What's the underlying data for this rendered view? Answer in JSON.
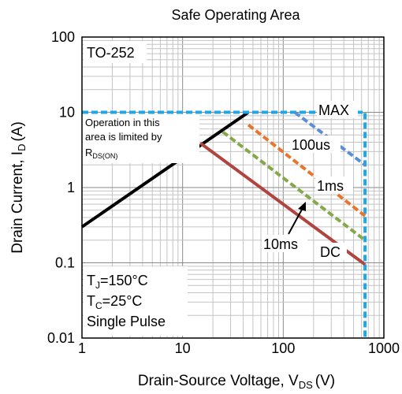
{
  "chart_data": {
    "type": "line",
    "title": "Safe Operating Area",
    "xlabel": {
      "main": "Drain-Source Voltage, V",
      "sub": "DS",
      "unit": "(V)"
    },
    "ylabel": {
      "main": "Drain Current, I",
      "sub": "D",
      "unit": "(A)"
    },
    "x_scale": "log",
    "y_scale": "log",
    "xlim": [
      1,
      1000
    ],
    "ylim": [
      0.01,
      100
    ],
    "grid": true,
    "x_ticks": [
      {
        "value": 1,
        "label": "1"
      },
      {
        "value": 10,
        "label": "10"
      },
      {
        "value": 100,
        "label": "100"
      },
      {
        "value": 1000,
        "label": "1000"
      }
    ],
    "y_ticks": [
      {
        "value": 0.01,
        "label": "0.01"
      },
      {
        "value": 0.1,
        "label": "0.1"
      },
      {
        "value": 1,
        "label": "1"
      },
      {
        "value": 10,
        "label": "10"
      },
      {
        "value": 100,
        "label": "100"
      }
    ],
    "series": [
      {
        "key": "rds",
        "color": "#000000",
        "dashed": false,
        "x": [
          1,
          45
        ],
        "y": [
          0.3,
          10
        ]
      },
      {
        "key": "max",
        "name": "MAX",
        "color": "#1ea7e8",
        "dashed": true,
        "x": [
          1,
          650,
          650
        ],
        "y": [
          10,
          10,
          0.01
        ]
      },
      {
        "key": "100us",
        "name": "100us",
        "color": "#5b8ed6",
        "dashed": true,
        "x": [
          130,
          650
        ],
        "y": [
          10,
          2
        ]
      },
      {
        "key": "1ms",
        "name": "1ms",
        "color": "#e7762c",
        "dashed": true,
        "x": [
          45,
          650
        ],
        "y": [
          6.8,
          0.42
        ]
      },
      {
        "key": "10ms",
        "name": "10ms",
        "color": "#85a84a",
        "dashed": true,
        "x": [
          25,
          650
        ],
        "y": [
          5.5,
          0.2
        ]
      },
      {
        "key": "dc",
        "name": "DC",
        "color": "#b0443f",
        "dashed": false,
        "x": [
          15,
          650
        ],
        "y": [
          3.9,
          0.095
        ]
      }
    ],
    "annotations": {
      "package": "TO-252",
      "rds_note": {
        "line1": "Operation in this",
        "line2": "area is limited by",
        "r": "R",
        "sub": "DS(ON)"
      },
      "max_label": "MAX",
      "us100_label": "100us",
      "ms1_label": "1ms",
      "ms10_label": "10ms",
      "dc_label": "DC",
      "tj": {
        "t": "T",
        "sub": "J",
        "val": "=150°C"
      },
      "tc": {
        "t": "T",
        "sub": "C",
        "val": "=25°C"
      },
      "pulse": "Single Pulse"
    }
  }
}
